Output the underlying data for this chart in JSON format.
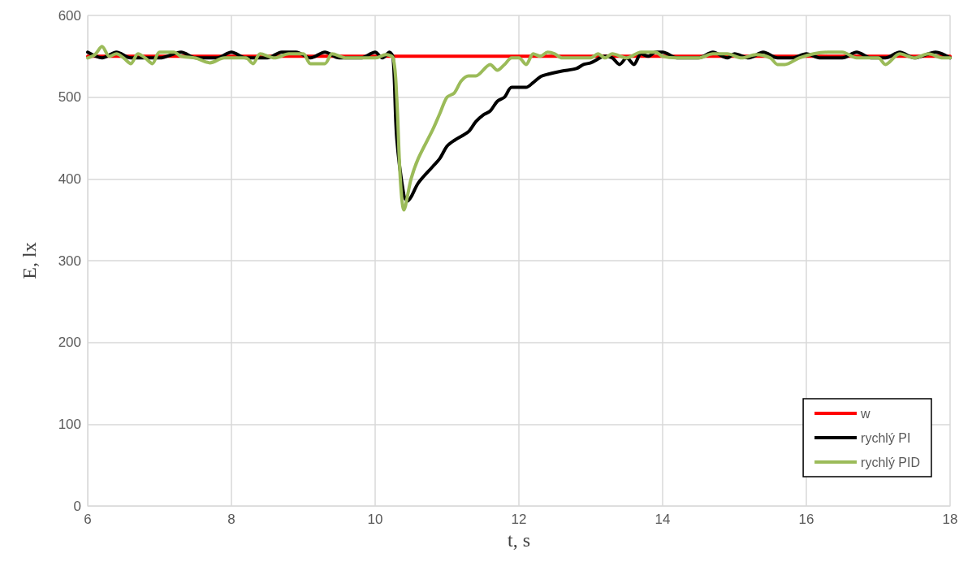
{
  "chart_data": {
    "type": "line",
    "xlabel": "t, s",
    "ylabel": "E, lx",
    "xlim": [
      6,
      18
    ],
    "xticks": [
      6,
      8,
      10,
      12,
      14,
      16,
      18
    ],
    "ylim": [
      0,
      600
    ],
    "yticks": [
      0,
      100,
      200,
      300,
      400,
      500,
      600
    ],
    "grid": true,
    "legend": "bottom right",
    "marker": "none",
    "line_style": "solid",
    "series": [
      {
        "name": "w",
        "color": "#ff0000",
        "x": [
          6,
          18
        ],
        "values": [
          550,
          550
        ]
      },
      {
        "name": "rychlý PI",
        "color": "#000000",
        "x": [
          6.0,
          6.2,
          6.4,
          6.6,
          6.8,
          7.0,
          7.3,
          7.5,
          7.8,
          8.0,
          8.2,
          8.5,
          8.7,
          8.9,
          9.1,
          9.3,
          9.5,
          9.8,
          10.0,
          10.1,
          10.2,
          10.25,
          10.3,
          10.4,
          10.45,
          10.5,
          10.6,
          10.8,
          10.9,
          11.0,
          11.1,
          11.3,
          11.4,
          11.5,
          11.6,
          11.7,
          11.8,
          11.9,
          12.1,
          12.2,
          12.3,
          12.4,
          12.6,
          12.8,
          12.9,
          13.0,
          13.2,
          13.3,
          13.4,
          13.5,
          13.6,
          13.7,
          13.8,
          13.9,
          14.0,
          14.2,
          14.5,
          14.7,
          14.9,
          15.0,
          15.2,
          15.4,
          15.6,
          15.8,
          16.0,
          16.2,
          16.5,
          16.7,
          16.9,
          17.1,
          17.3,
          17.5,
          17.8,
          18.0
        ],
        "values": [
          555,
          548,
          555,
          548,
          548,
          548,
          555,
          548,
          548,
          555,
          548,
          548,
          555,
          555,
          548,
          555,
          548,
          548,
          555,
          548,
          555,
          548,
          450,
          380,
          373,
          378,
          395,
          415,
          425,
          440,
          447,
          458,
          470,
          478,
          483,
          495,
          500,
          512,
          512,
          518,
          525,
          528,
          532,
          535,
          540,
          542,
          550,
          548,
          540,
          548,
          540,
          553,
          550,
          555,
          555,
          548,
          548,
          555,
          548,
          553,
          548,
          555,
          548,
          548,
          553,
          548,
          548,
          555,
          548,
          548,
          555,
          548,
          555,
          548
        ]
      },
      {
        "name": "rychlý PID",
        "color": "#9bbb59",
        "x": [
          6.0,
          6.1,
          6.2,
          6.3,
          6.4,
          6.5,
          6.6,
          6.7,
          6.8,
          6.9,
          7.0,
          7.2,
          7.3,
          7.5,
          7.7,
          7.9,
          8.0,
          8.2,
          8.3,
          8.4,
          8.6,
          8.8,
          9.0,
          9.1,
          9.3,
          9.4,
          9.6,
          9.8,
          10.0,
          10.15,
          10.25,
          10.3,
          10.35,
          10.4,
          10.5,
          10.6,
          10.8,
          10.9,
          11.0,
          11.1,
          11.2,
          11.3,
          11.4,
          11.6,
          11.7,
          11.8,
          11.9,
          12.0,
          12.1,
          12.2,
          12.3,
          12.4,
          12.5,
          12.6,
          12.8,
          13.0,
          13.1,
          13.2,
          13.3,
          13.5,
          13.7,
          13.9,
          14.0,
          14.2,
          14.5,
          14.7,
          14.9,
          15.1,
          15.3,
          15.5,
          15.6,
          15.7,
          15.9,
          16.1,
          16.3,
          16.5,
          16.7,
          17.0,
          17.1,
          17.3,
          17.5,
          17.7,
          17.9,
          18.0
        ],
        "values": [
          548,
          552,
          562,
          550,
          553,
          548,
          541,
          553,
          548,
          541,
          555,
          555,
          550,
          548,
          542,
          548,
          548,
          548,
          541,
          553,
          548,
          553,
          553,
          541,
          541,
          553,
          548,
          548,
          548,
          552,
          548,
          500,
          400,
          362,
          400,
          425,
          460,
          480,
          500,
          505,
          520,
          526,
          526,
          540,
          533,
          540,
          548,
          548,
          540,
          553,
          550,
          555,
          553,
          548,
          548,
          548,
          553,
          548,
          553,
          548,
          555,
          555,
          550,
          548,
          548,
          553,
          553,
          548,
          552,
          548,
          540,
          540,
          548,
          553,
          555,
          555,
          548,
          548,
          540,
          553,
          548,
          553,
          548,
          548
        ]
      }
    ]
  }
}
